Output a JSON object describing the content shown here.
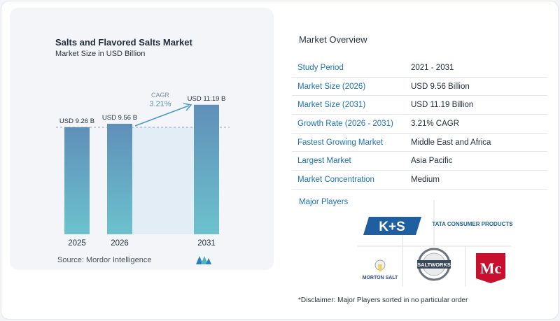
{
  "chart_data": {
    "type": "bar",
    "title": "Salts and Flavored Salts Market",
    "subtitle": "Market Size in USD Billion",
    "categories": [
      "2025",
      "2026",
      "2031"
    ],
    "values": [
      9.26,
      9.56,
      11.19
    ],
    "value_labels": [
      "USD 9.26 B",
      "USD 9.56 B",
      "USD 11.19 B"
    ],
    "annotation": {
      "label": "CAGR",
      "value": "3.21%"
    },
    "colors": {
      "bar_top": "#5f8fb9",
      "bar_bottom": "#6cc2cd",
      "shade": "#e2edf6",
      "arrow": "#4b9ad0",
      "annotation": "#7f93a6"
    }
  },
  "source": "Source:  Mordor Intelligence",
  "overview": {
    "title": "Market Overview",
    "rows": [
      {
        "key": "Study Period",
        "value": "2021 - 2031"
      },
      {
        "key": "Market Size (2026)",
        "value": "USD 9.56 Billion"
      },
      {
        "key": "Market Size (2031)",
        "value": "USD 11.19 Billion"
      },
      {
        "key": "Growth Rate (2026 - 2031)",
        "value": "3.21% CAGR"
      },
      {
        "key": "Fastest Growing Market",
        "value": "Middle East and Africa"
      },
      {
        "key": "Largest Market",
        "value": "Asia Pacific"
      },
      {
        "key": "Market Concentration",
        "value": "Medium"
      }
    ]
  },
  "players": {
    "title": "Major Players",
    "logos": [
      "K+S",
      "TATA CONSUMER PRODUCTS",
      "MORTON SALT",
      "SALTWORKS",
      "Mc"
    ]
  },
  "disclaimer": "*Disclaimer: Major Players sorted in no particular order"
}
